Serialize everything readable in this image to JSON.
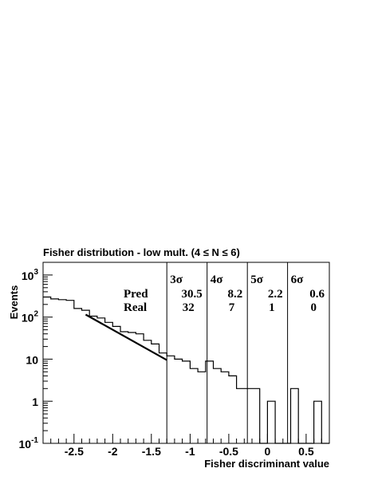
{
  "chart_data": {
    "type": "step",
    "title_prefix": "Fisher distribution - low mult. (4 ",
    "title_mid": " N ",
    "title_suffix": " 6)",
    "xlabel": "Fisher discriminant value",
    "ylabel": "Events",
    "xlim": [
      -2.9,
      0.8
    ],
    "ylim": [
      0.1,
      2000
    ],
    "yscale": "log",
    "x_ticks": [
      -2.5,
      -2,
      -1.5,
      -1,
      -0.5,
      0,
      0.5
    ],
    "x_tick_labels": [
      "-2.5",
      "-2",
      "-1.5",
      "-1",
      "-0.5",
      "0",
      "0.5"
    ],
    "y_ticks": [
      {
        "value": 0.1,
        "base": "10",
        "exp": "-1"
      },
      {
        "value": 1,
        "base": "1",
        "exp": ""
      },
      {
        "value": 10,
        "base": "10",
        "exp": ""
      },
      {
        "value": 100,
        "base": "10",
        "exp": "2"
      },
      {
        "value": 1000,
        "base": "10",
        "exp": "3"
      }
    ],
    "histogram": {
      "bin_width": 0.1,
      "x_start": -2.9,
      "counts": [
        300,
        270,
        260,
        250,
        160,
        145,
        105,
        95,
        75,
        60,
        45,
        43,
        40,
        28,
        23,
        14,
        12,
        10,
        9,
        6,
        5,
        9,
        6,
        5,
        4,
        2,
        2,
        2,
        0.1,
        1,
        0.1,
        0.1,
        2,
        0.1,
        0.1,
        1,
        0.1
      ]
    },
    "fit_line": {
      "x": [
        -2.35,
        -1.3
      ],
      "y": [
        115,
        9.5
      ]
    },
    "sigma_lines": [
      -1.3,
      -0.78,
      -0.26,
      0.26
    ],
    "annotations": {
      "row_labels": {
        "pred": "Pred",
        "real": "Real"
      },
      "sigma_symbol": "σ",
      "columns": [
        {
          "n": "3",
          "pred": "30.5",
          "real": "32"
        },
        {
          "n": "4",
          "pred": "8.2",
          "real": "7"
        },
        {
          "n": "5",
          "pred": "2.2",
          "real": "1"
        },
        {
          "n": "6",
          "pred": "0.6",
          "real": "0"
        }
      ]
    }
  }
}
